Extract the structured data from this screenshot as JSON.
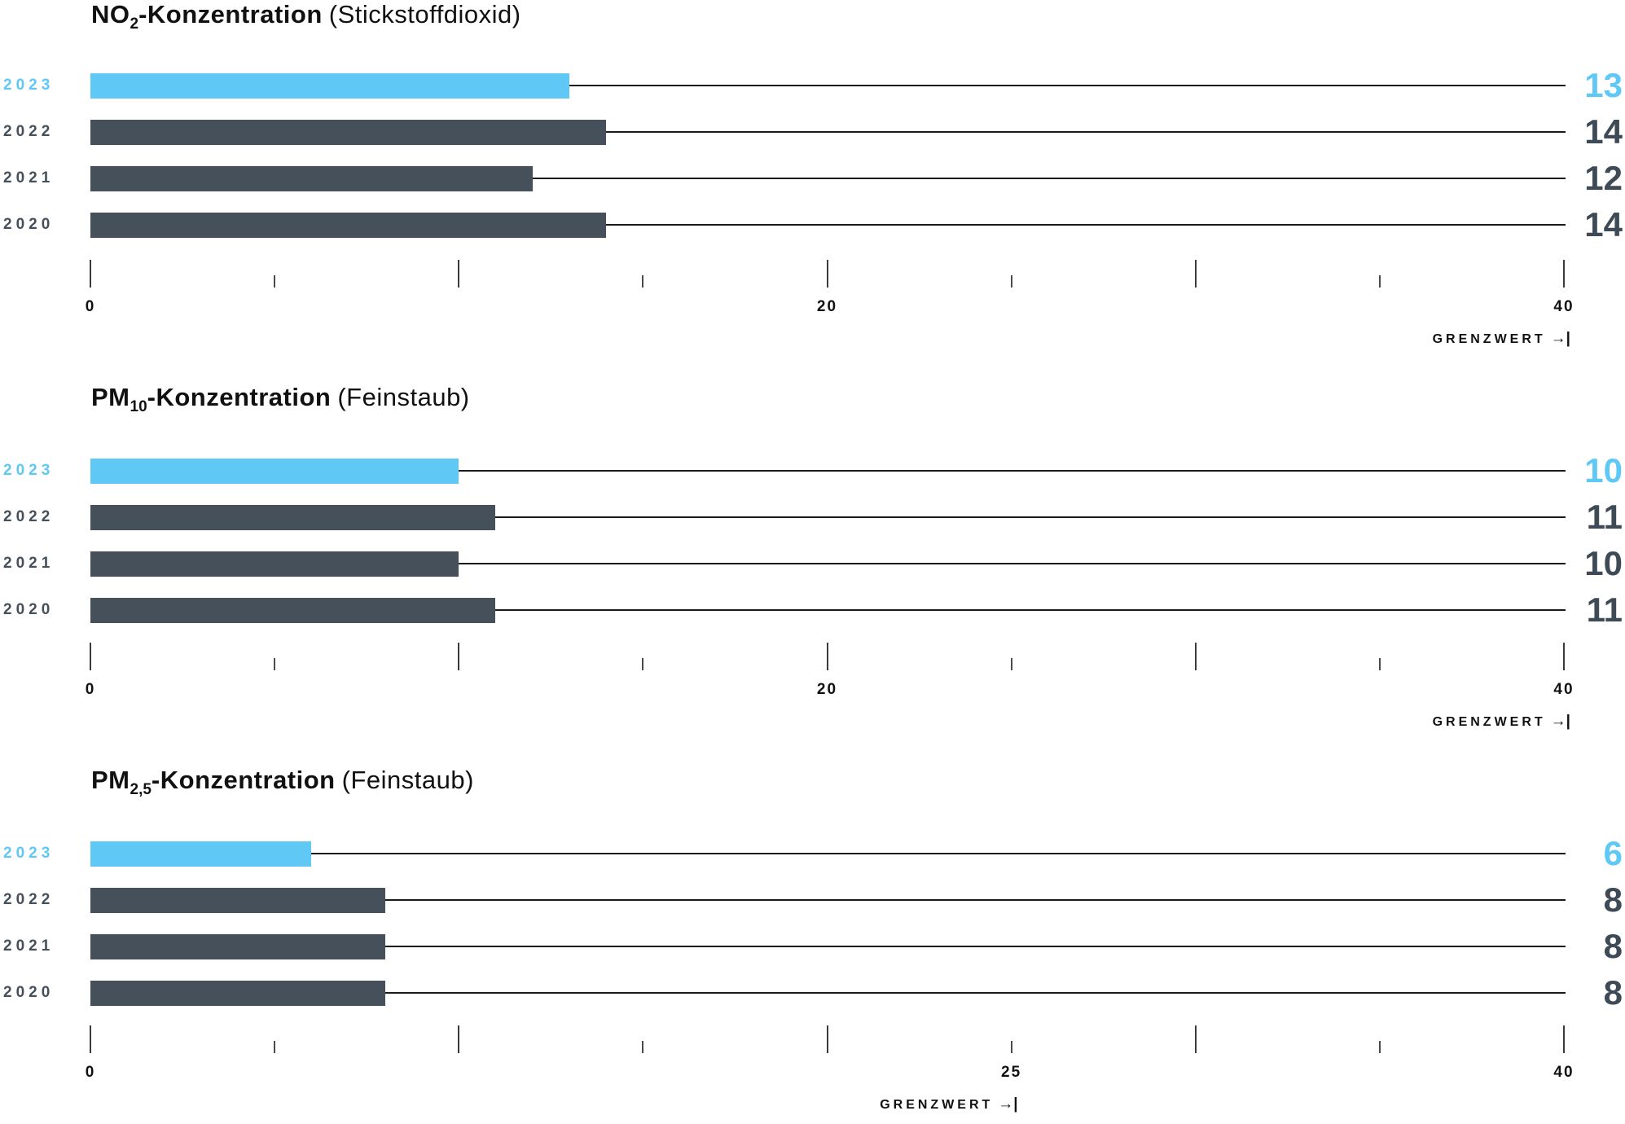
{
  "page": {
    "background": "#ffffff"
  },
  "palette": {
    "highlight": "#5fc8f5",
    "bar_dark": "#46505a",
    "value_dark": "#3e4a55",
    "year_dark": "#46505a",
    "line": "#1a1a1a",
    "tick_major": "#3a3a3a",
    "tick_minor": "#4a4a4a",
    "text": "#111111"
  },
  "chart_data": [
    {
      "type": "bar",
      "title": {
        "formula_prefix": "NO",
        "formula_sub": "2",
        "formula_suffix": "-Konzentration",
        "note": "(Stickstoffdioxid)"
      },
      "categories": [
        "2023",
        "2022",
        "2021",
        "2020"
      ],
      "values": [
        13,
        14,
        12,
        14
      ],
      "highlight_index": 0,
      "xlim": [
        0,
        40
      ],
      "tick_step": 5,
      "major_every": 10,
      "grid": false,
      "legend_position": "none",
      "tick_labels": [
        {
          "value": 0,
          "label": "0"
        },
        {
          "value": 20,
          "label": "20"
        },
        {
          "value": 40,
          "label": "40"
        }
      ],
      "limit": {
        "label": "GRENZWERT",
        "arrow": "→|",
        "value": 40
      }
    },
    {
      "type": "bar",
      "title": {
        "formula_prefix": "PM",
        "formula_sub": "10",
        "formula_suffix": "-Konzentration",
        "note": "(Feinstaub)"
      },
      "categories": [
        "2023",
        "2022",
        "2021",
        "2020"
      ],
      "values": [
        10,
        11,
        10,
        11
      ],
      "highlight_index": 0,
      "xlim": [
        0,
        40
      ],
      "tick_step": 5,
      "major_every": 10,
      "grid": false,
      "legend_position": "none",
      "tick_labels": [
        {
          "value": 0,
          "label": "0"
        },
        {
          "value": 20,
          "label": "20"
        },
        {
          "value": 40,
          "label": "40"
        }
      ],
      "limit": {
        "label": "GRENZWERT",
        "arrow": "→|",
        "value": 40
      }
    },
    {
      "type": "bar",
      "title": {
        "formula_prefix": "PM",
        "formula_sub": "2,5",
        "formula_suffix": "-Konzentration",
        "note": "(Feinstaub)"
      },
      "categories": [
        "2023",
        "2022",
        "2021",
        "2020"
      ],
      "values": [
        6,
        8,
        8,
        8
      ],
      "highlight_index": 0,
      "xlim": [
        0,
        40
      ],
      "tick_step": 5,
      "major_every": 10,
      "grid": false,
      "legend_position": "none",
      "tick_labels": [
        {
          "value": 0,
          "label": "0"
        },
        {
          "value": 25,
          "label": "25"
        },
        {
          "value": 40,
          "label": "40"
        }
      ],
      "limit": {
        "label": "GRENZWERT",
        "arrow": "→|",
        "value": 25
      }
    }
  ]
}
